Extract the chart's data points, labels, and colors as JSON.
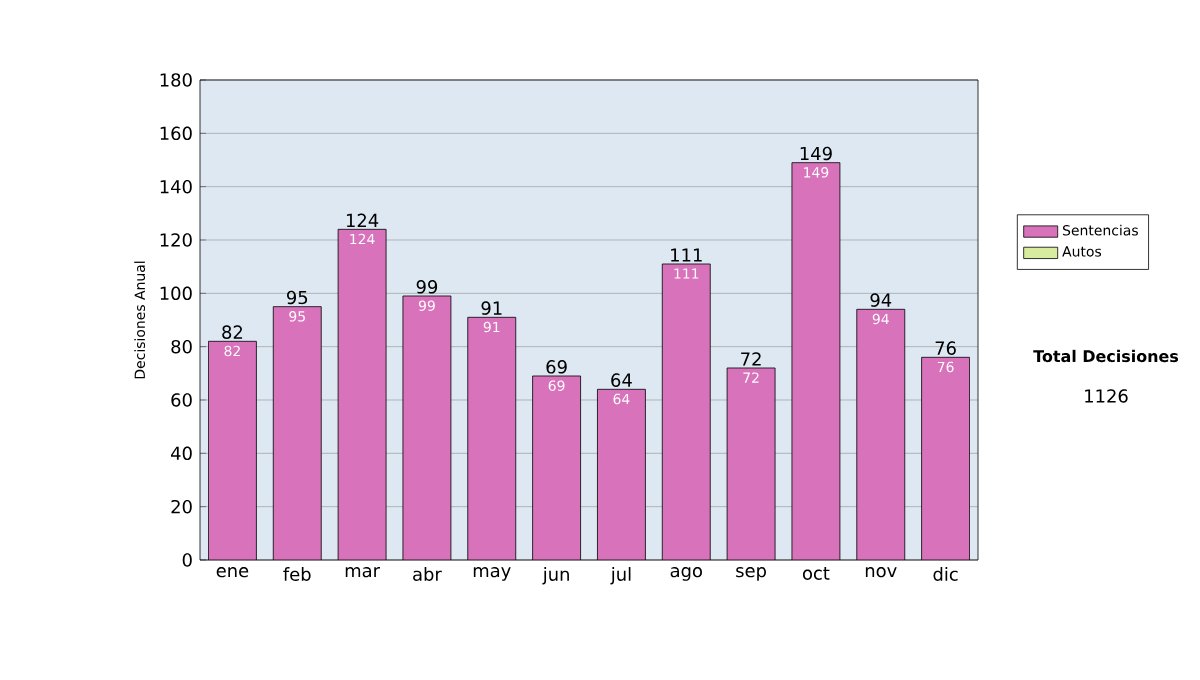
{
  "chart_data": {
    "type": "bar",
    "stacked": true,
    "ylabel": "Decisiones Anual",
    "categories": [
      "ene",
      "feb",
      "mar",
      "abr",
      "may",
      "jun",
      "jul",
      "ago",
      "sep",
      "oct",
      "nov",
      "dic"
    ],
    "series": [
      {
        "name": "Sentencias",
        "color": "#d873bb",
        "values": [
          82,
          95,
          124,
          99,
          91,
          69,
          64,
          111,
          72,
          149,
          94,
          76
        ],
        "value_labels": [
          "82",
          "95",
          "124",
          "99",
          "91",
          "69",
          "64",
          "111",
          "72",
          "149",
          "94",
          "76"
        ]
      },
      {
        "name": "Autos",
        "color": "#d8eca0",
        "values": [
          null,
          null,
          null,
          null,
          null,
          null,
          null,
          null,
          null,
          null,
          null,
          null
        ]
      }
    ],
    "totals": [
      "82",
      "95",
      "124",
      "99",
      "91",
      "69",
      "64",
      "111",
      "72",
      "149",
      "94",
      "76"
    ],
    "ylim": [
      0,
      180
    ],
    "yticks": [
      0,
      20,
      40,
      60,
      80,
      100,
      120,
      140,
      160,
      180
    ],
    "grid": "y",
    "legend": "right",
    "annotations": [
      "Total Decisiones",
      "1126"
    ]
  }
}
